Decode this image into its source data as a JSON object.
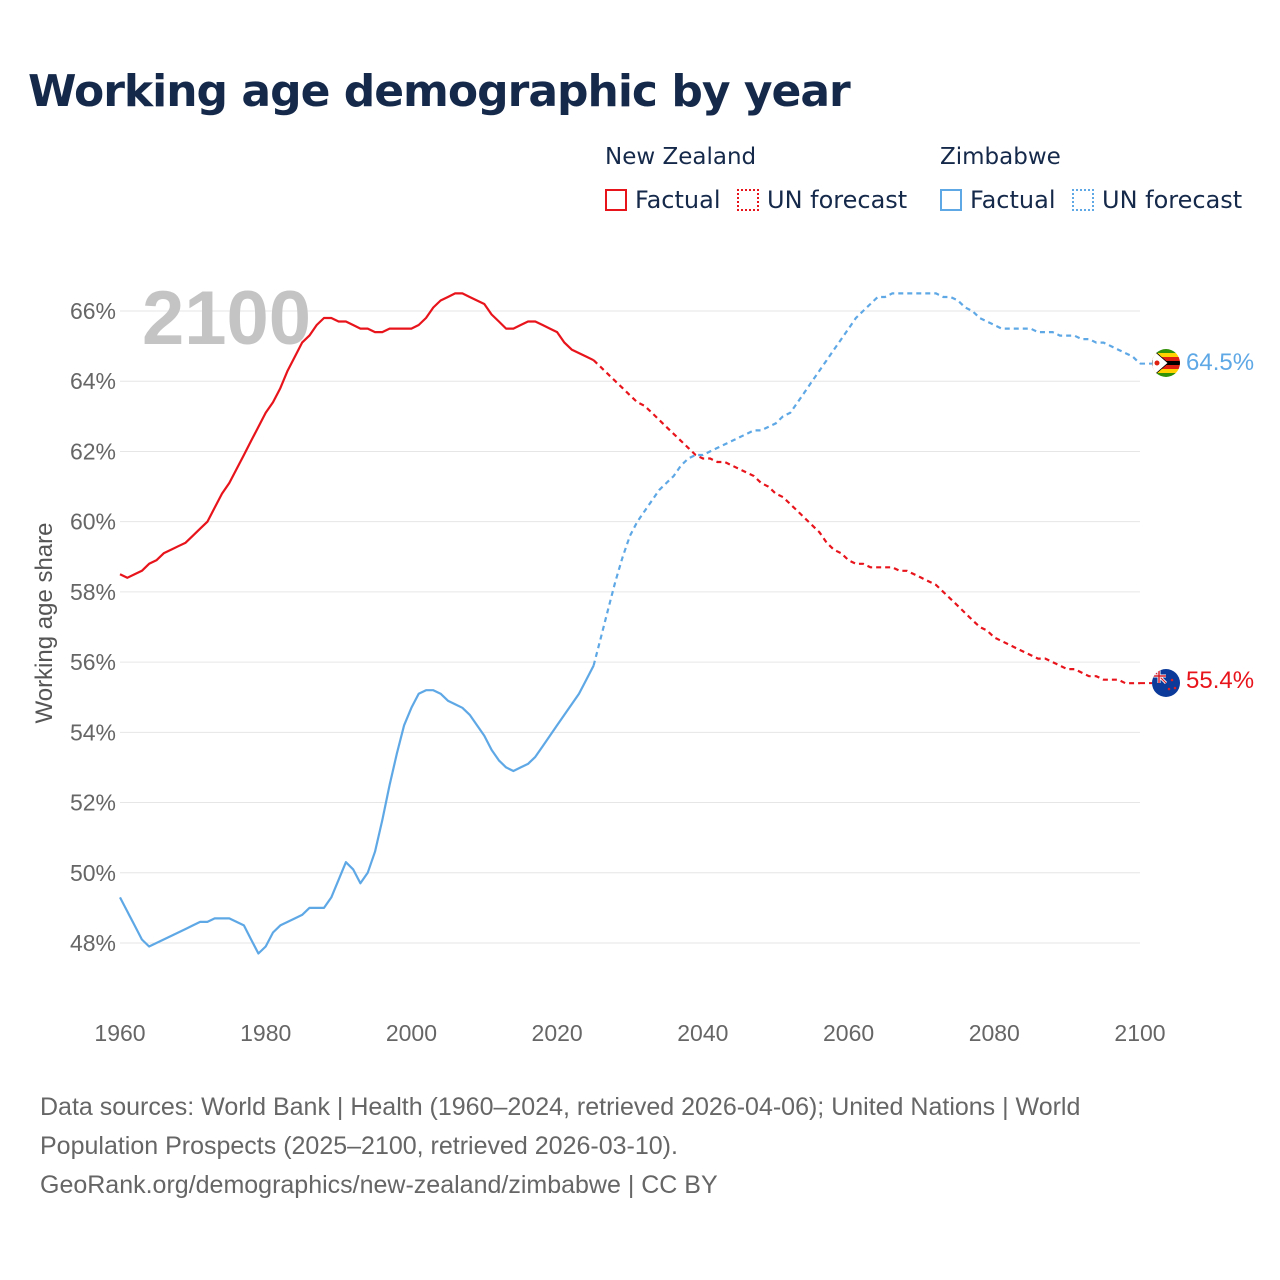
{
  "title": "Working age demographic by year",
  "legend": {
    "groups": [
      {
        "name": "New Zealand",
        "factual_label": "Factual",
        "forecast_label": "UN forecast",
        "color": "#e8141c"
      },
      {
        "name": "Zimbabwe",
        "factual_label": "Factual",
        "forecast_label": "UN forecast",
        "color": "#5fa8e6"
      }
    ]
  },
  "footer": {
    "line1": "Data sources: World Bank | Health (1960–2024, retrieved 2026-04-06); United Nations | World",
    "line2": "Population Prospects (2025–2100, retrieved 2026-03-10).",
    "line3": "GeoRank.org/demographics/new-zealand/zimbabwe | CC BY"
  },
  "chart_data": {
    "type": "line",
    "title": "Working age demographic by year",
    "year_watermark": "2100",
    "xlabel": "",
    "ylabel": "Working age share",
    "xlim": [
      1960,
      2100
    ],
    "ylim": [
      46.8,
      67
    ],
    "x_ticks": [
      1960,
      1980,
      2000,
      2020,
      2040,
      2060,
      2080,
      2100
    ],
    "x_tick_labels": [
      "1960",
      "1980",
      "2000",
      "2020",
      "2040",
      "2060",
      "2080",
      "2100"
    ],
    "y_ticks": [
      48,
      50,
      52,
      54,
      56,
      58,
      60,
      62,
      64,
      66
    ],
    "y_tick_labels": [
      "48%",
      "50%",
      "52%",
      "54%",
      "56%",
      "58%",
      "60%",
      "62%",
      "64%",
      "66%"
    ],
    "grid": true,
    "forecast_start": 2025,
    "series": [
      {
        "name": "New Zealand",
        "color": "#e8141c",
        "end_label": "55.4%",
        "points": [
          [
            1960,
            58.5
          ],
          [
            1961,
            58.4
          ],
          [
            1962,
            58.5
          ],
          [
            1963,
            58.6
          ],
          [
            1964,
            58.8
          ],
          [
            1965,
            58.9
          ],
          [
            1966,
            59.1
          ],
          [
            1967,
            59.2
          ],
          [
            1968,
            59.3
          ],
          [
            1969,
            59.4
          ],
          [
            1970,
            59.6
          ],
          [
            1971,
            59.8
          ],
          [
            1972,
            60.0
          ],
          [
            1973,
            60.4
          ],
          [
            1974,
            60.8
          ],
          [
            1975,
            61.1
          ],
          [
            1976,
            61.5
          ],
          [
            1977,
            61.9
          ],
          [
            1978,
            62.3
          ],
          [
            1979,
            62.7
          ],
          [
            1980,
            63.1
          ],
          [
            1981,
            63.4
          ],
          [
            1982,
            63.8
          ],
          [
            1983,
            64.3
          ],
          [
            1984,
            64.7
          ],
          [
            1985,
            65.1
          ],
          [
            1986,
            65.3
          ],
          [
            1987,
            65.6
          ],
          [
            1988,
            65.8
          ],
          [
            1989,
            65.8
          ],
          [
            1990,
            65.7
          ],
          [
            1991,
            65.7
          ],
          [
            1992,
            65.6
          ],
          [
            1993,
            65.5
          ],
          [
            1994,
            65.5
          ],
          [
            1995,
            65.4
          ],
          [
            1996,
            65.4
          ],
          [
            1997,
            65.5
          ],
          [
            1998,
            65.5
          ],
          [
            1999,
            65.5
          ],
          [
            2000,
            65.5
          ],
          [
            2001,
            65.6
          ],
          [
            2002,
            65.8
          ],
          [
            2003,
            66.1
          ],
          [
            2004,
            66.3
          ],
          [
            2005,
            66.4
          ],
          [
            2006,
            66.5
          ],
          [
            2007,
            66.5
          ],
          [
            2008,
            66.4
          ],
          [
            2009,
            66.3
          ],
          [
            2010,
            66.2
          ],
          [
            2011,
            65.9
          ],
          [
            2012,
            65.7
          ],
          [
            2013,
            65.5
          ],
          [
            2014,
            65.5
          ],
          [
            2015,
            65.6
          ],
          [
            2016,
            65.7
          ],
          [
            2017,
            65.7
          ],
          [
            2018,
            65.6
          ],
          [
            2019,
            65.5
          ],
          [
            2020,
            65.4
          ],
          [
            2021,
            65.1
          ],
          [
            2022,
            64.9
          ],
          [
            2023,
            64.8
          ],
          [
            2024,
            64.7
          ],
          [
            2025,
            64.6
          ],
          [
            2026,
            64.4
          ],
          [
            2027,
            64.2
          ],
          [
            2028,
            64.0
          ],
          [
            2029,
            63.8
          ],
          [
            2030,
            63.6
          ],
          [
            2031,
            63.4
          ],
          [
            2032,
            63.3
          ],
          [
            2033,
            63.1
          ],
          [
            2034,
            62.9
          ],
          [
            2035,
            62.7
          ],
          [
            2036,
            62.5
          ],
          [
            2037,
            62.3
          ],
          [
            2038,
            62.1
          ],
          [
            2039,
            61.9
          ],
          [
            2040,
            61.8
          ],
          [
            2041,
            61.8
          ],
          [
            2042,
            61.7
          ],
          [
            2043,
            61.7
          ],
          [
            2044,
            61.6
          ],
          [
            2045,
            61.5
          ],
          [
            2046,
            61.4
          ],
          [
            2047,
            61.3
          ],
          [
            2048,
            61.1
          ],
          [
            2049,
            61.0
          ],
          [
            2050,
            60.8
          ],
          [
            2051,
            60.7
          ],
          [
            2052,
            60.5
          ],
          [
            2053,
            60.3
          ],
          [
            2054,
            60.1
          ],
          [
            2055,
            59.9
          ],
          [
            2056,
            59.7
          ],
          [
            2057,
            59.4
          ],
          [
            2058,
            59.2
          ],
          [
            2059,
            59.1
          ],
          [
            2060,
            58.9
          ],
          [
            2061,
            58.8
          ],
          [
            2062,
            58.8
          ],
          [
            2063,
            58.7
          ],
          [
            2064,
            58.7
          ],
          [
            2065,
            58.7
          ],
          [
            2066,
            58.7
          ],
          [
            2067,
            58.6
          ],
          [
            2068,
            58.6
          ],
          [
            2069,
            58.5
          ],
          [
            2070,
            58.4
          ],
          [
            2071,
            58.3
          ],
          [
            2072,
            58.2
          ],
          [
            2073,
            58.0
          ],
          [
            2074,
            57.8
          ],
          [
            2075,
            57.6
          ],
          [
            2076,
            57.4
          ],
          [
            2077,
            57.2
          ],
          [
            2078,
            57.0
          ],
          [
            2079,
            56.9
          ],
          [
            2080,
            56.7
          ],
          [
            2081,
            56.6
          ],
          [
            2082,
            56.5
          ],
          [
            2083,
            56.4
          ],
          [
            2084,
            56.3
          ],
          [
            2085,
            56.2
          ],
          [
            2086,
            56.1
          ],
          [
            2087,
            56.1
          ],
          [
            2088,
            56.0
          ],
          [
            2089,
            55.9
          ],
          [
            2090,
            55.8
          ],
          [
            2091,
            55.8
          ],
          [
            2092,
            55.7
          ],
          [
            2093,
            55.6
          ],
          [
            2094,
            55.6
          ],
          [
            2095,
            55.5
          ],
          [
            2096,
            55.5
          ],
          [
            2097,
            55.5
          ],
          [
            2098,
            55.4
          ],
          [
            2099,
            55.4
          ],
          [
            2100,
            55.4
          ]
        ]
      },
      {
        "name": "Zimbabwe",
        "color": "#5fa8e6",
        "end_label": "64.5%",
        "points": [
          [
            1960,
            49.3
          ],
          [
            1961,
            48.9
          ],
          [
            1962,
            48.5
          ],
          [
            1963,
            48.1
          ],
          [
            1964,
            47.9
          ],
          [
            1965,
            48.0
          ],
          [
            1966,
            48.1
          ],
          [
            1967,
            48.2
          ],
          [
            1968,
            48.3
          ],
          [
            1969,
            48.4
          ],
          [
            1970,
            48.5
          ],
          [
            1971,
            48.6
          ],
          [
            1972,
            48.6
          ],
          [
            1973,
            48.7
          ],
          [
            1974,
            48.7
          ],
          [
            1975,
            48.7
          ],
          [
            1976,
            48.6
          ],
          [
            1977,
            48.5
          ],
          [
            1978,
            48.1
          ],
          [
            1979,
            47.7
          ],
          [
            1980,
            47.9
          ],
          [
            1981,
            48.3
          ],
          [
            1982,
            48.5
          ],
          [
            1983,
            48.6
          ],
          [
            1984,
            48.7
          ],
          [
            1985,
            48.8
          ],
          [
            1986,
            49.0
          ],
          [
            1987,
            49.0
          ],
          [
            1988,
            49.0
          ],
          [
            1989,
            49.3
          ],
          [
            1990,
            49.8
          ],
          [
            1991,
            50.3
          ],
          [
            1992,
            50.1
          ],
          [
            1993,
            49.7
          ],
          [
            1994,
            50.0
          ],
          [
            1995,
            50.6
          ],
          [
            1996,
            51.5
          ],
          [
            1997,
            52.5
          ],
          [
            1998,
            53.4
          ],
          [
            1999,
            54.2
          ],
          [
            2000,
            54.7
          ],
          [
            2001,
            55.1
          ],
          [
            2002,
            55.2
          ],
          [
            2003,
            55.2
          ],
          [
            2004,
            55.1
          ],
          [
            2005,
            54.9
          ],
          [
            2006,
            54.8
          ],
          [
            2007,
            54.7
          ],
          [
            2008,
            54.5
          ],
          [
            2009,
            54.2
          ],
          [
            2010,
            53.9
          ],
          [
            2011,
            53.5
          ],
          [
            2012,
            53.2
          ],
          [
            2013,
            53.0
          ],
          [
            2014,
            52.9
          ],
          [
            2015,
            53.0
          ],
          [
            2016,
            53.1
          ],
          [
            2017,
            53.3
          ],
          [
            2018,
            53.6
          ],
          [
            2019,
            53.9
          ],
          [
            2020,
            54.2
          ],
          [
            2021,
            54.5
          ],
          [
            2022,
            54.8
          ],
          [
            2023,
            55.1
          ],
          [
            2024,
            55.5
          ],
          [
            2025,
            55.9
          ],
          [
            2026,
            56.7
          ],
          [
            2027,
            57.5
          ],
          [
            2028,
            58.3
          ],
          [
            2029,
            59.0
          ],
          [
            2030,
            59.6
          ],
          [
            2031,
            60.0
          ],
          [
            2032,
            60.3
          ],
          [
            2033,
            60.6
          ],
          [
            2034,
            60.9
          ],
          [
            2035,
            61.1
          ],
          [
            2036,
            61.3
          ],
          [
            2037,
            61.6
          ],
          [
            2038,
            61.8
          ],
          [
            2039,
            61.9
          ],
          [
            2040,
            61.9
          ],
          [
            2041,
            62.0
          ],
          [
            2042,
            62.1
          ],
          [
            2043,
            62.2
          ],
          [
            2044,
            62.3
          ],
          [
            2045,
            62.4
          ],
          [
            2046,
            62.5
          ],
          [
            2047,
            62.6
          ],
          [
            2048,
            62.6
          ],
          [
            2049,
            62.7
          ],
          [
            2050,
            62.8
          ],
          [
            2051,
            63.0
          ],
          [
            2052,
            63.1
          ],
          [
            2053,
            63.4
          ],
          [
            2054,
            63.7
          ],
          [
            2055,
            64.0
          ],
          [
            2056,
            64.3
          ],
          [
            2057,
            64.6
          ],
          [
            2058,
            64.9
          ],
          [
            2059,
            65.2
          ],
          [
            2060,
            65.5
          ],
          [
            2061,
            65.8
          ],
          [
            2062,
            66.0
          ],
          [
            2063,
            66.2
          ],
          [
            2064,
            66.4
          ],
          [
            2065,
            66.4
          ],
          [
            2066,
            66.5
          ],
          [
            2067,
            66.5
          ],
          [
            2068,
            66.5
          ],
          [
            2069,
            66.5
          ],
          [
            2070,
            66.5
          ],
          [
            2071,
            66.5
          ],
          [
            2072,
            66.5
          ],
          [
            2073,
            66.4
          ],
          [
            2074,
            66.4
          ],
          [
            2075,
            66.3
          ],
          [
            2076,
            66.1
          ],
          [
            2077,
            66.0
          ],
          [
            2078,
            65.8
          ],
          [
            2079,
            65.7
          ],
          [
            2080,
            65.6
          ],
          [
            2081,
            65.5
          ],
          [
            2082,
            65.5
          ],
          [
            2083,
            65.5
          ],
          [
            2084,
            65.5
          ],
          [
            2085,
            65.5
          ],
          [
            2086,
            65.4
          ],
          [
            2087,
            65.4
          ],
          [
            2088,
            65.4
          ],
          [
            2089,
            65.3
          ],
          [
            2090,
            65.3
          ],
          [
            2091,
            65.3
          ],
          [
            2092,
            65.2
          ],
          [
            2093,
            65.2
          ],
          [
            2094,
            65.1
          ],
          [
            2095,
            65.1
          ],
          [
            2096,
            65.0
          ],
          [
            2097,
            64.9
          ],
          [
            2098,
            64.8
          ],
          [
            2099,
            64.7
          ],
          [
            2100,
            64.5
          ]
        ]
      }
    ]
  }
}
